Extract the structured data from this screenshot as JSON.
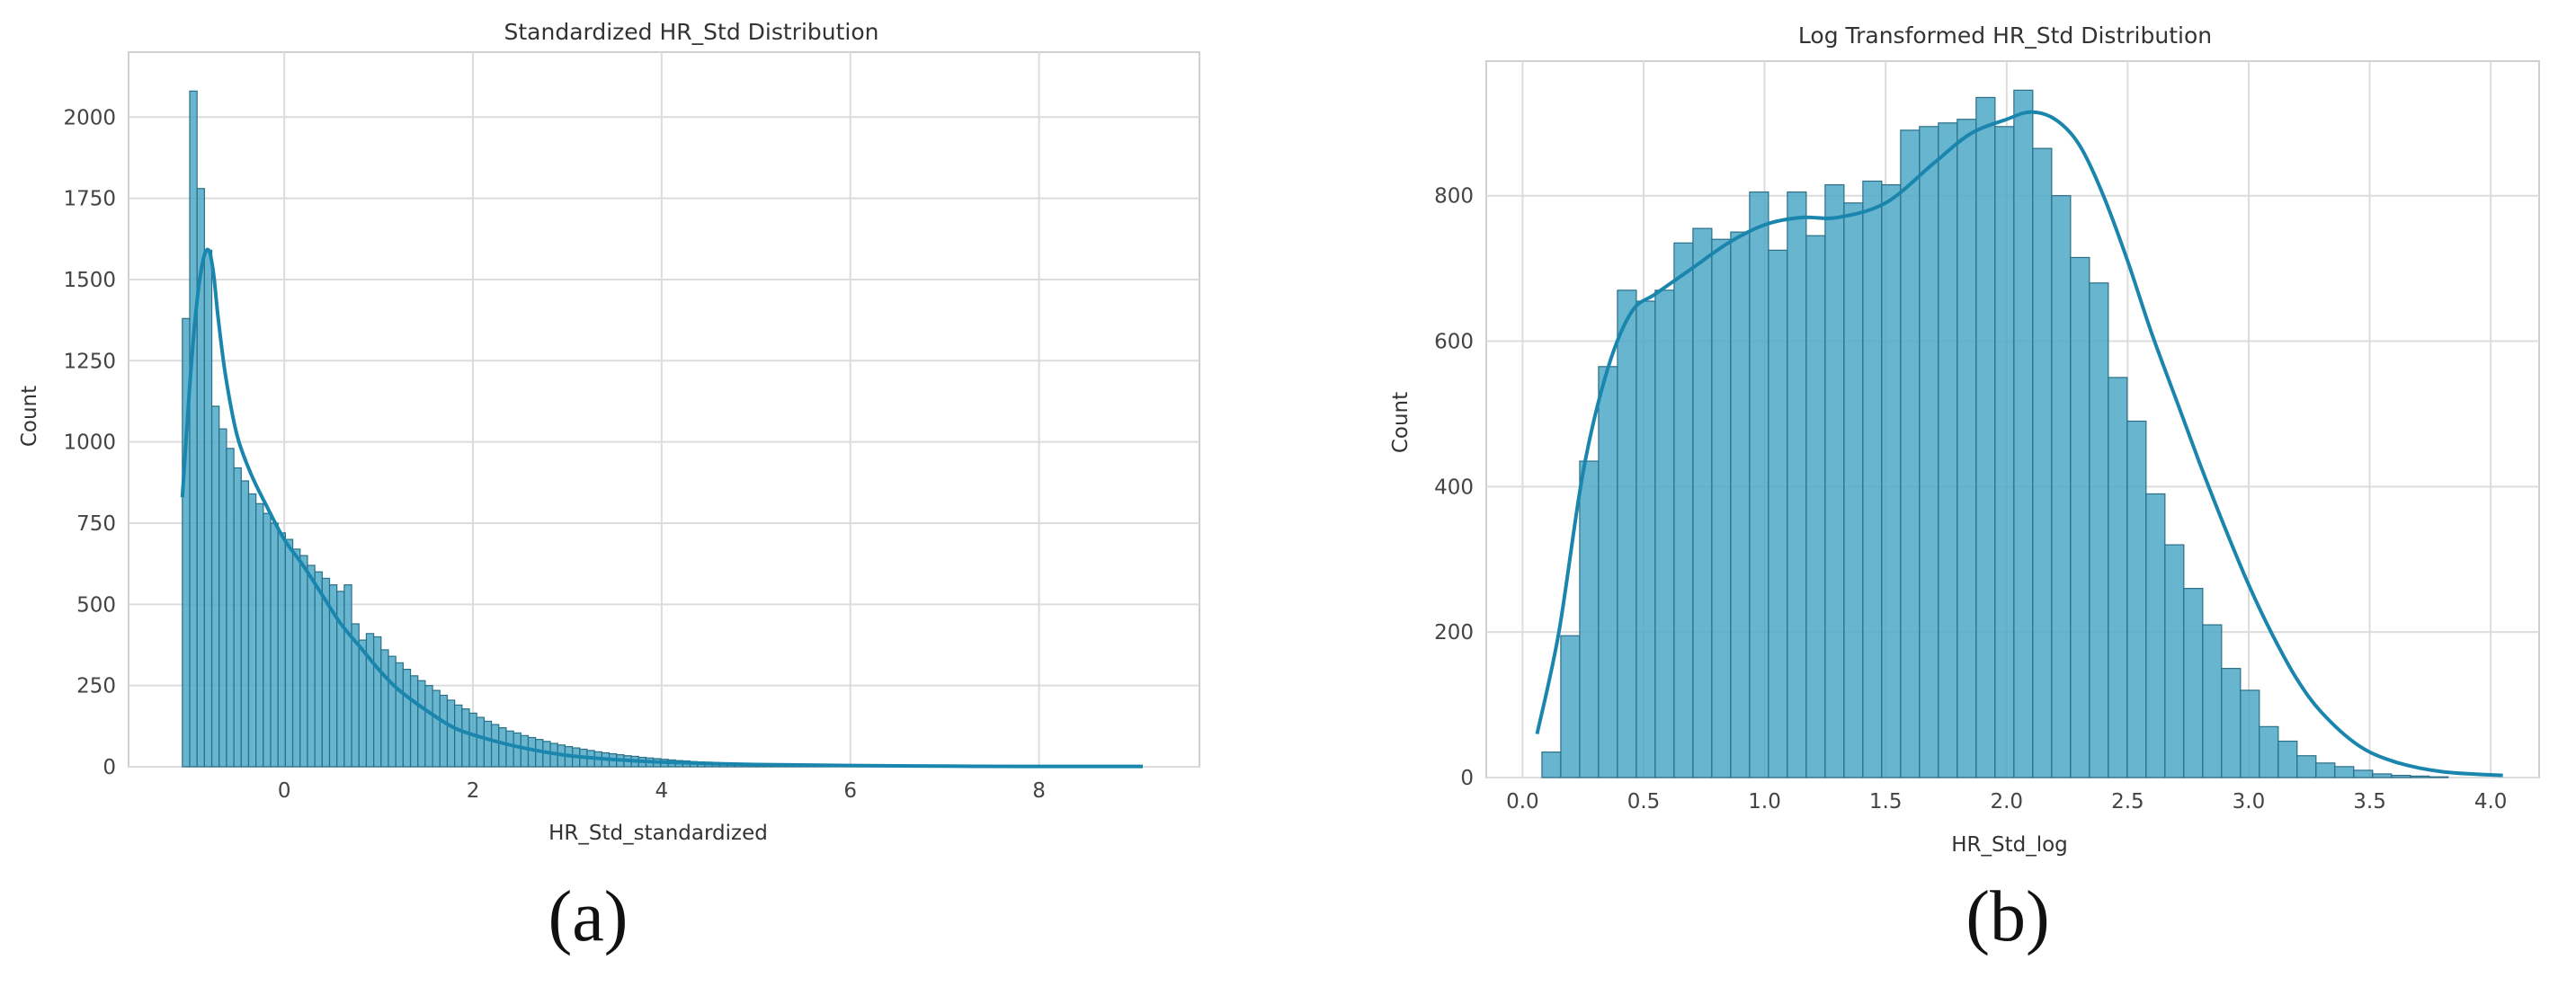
{
  "figure": {
    "captions": [
      "(a)",
      "(b)"
    ]
  },
  "chart_data": [
    {
      "type": "histogram",
      "title": "Standardized HR_Std Distribution",
      "xlabel": "HR_Std_standardized",
      "ylabel": "Count",
      "xlim": [
        -1.65,
        9.7
      ],
      "ylim": [
        0,
        2200
      ],
      "xticks": [
        0,
        2,
        4,
        6,
        8
      ],
      "yticks": [
        0,
        250,
        500,
        750,
        1000,
        1250,
        1500,
        1750,
        2000
      ],
      "grid": true,
      "color": "#4ea8c7",
      "kde_color": "#1b86ad",
      "bins": {
        "start": -1.08,
        "width": 0.078,
        "counts": [
          1380,
          2080,
          1780,
          1590,
          1110,
          1040,
          980,
          920,
          880,
          840,
          810,
          780,
          750,
          720,
          700,
          670,
          650,
          620,
          600,
          580,
          560,
          540,
          560,
          440,
          390,
          410,
          400,
          360,
          340,
          320,
          300,
          280,
          265,
          250,
          235,
          220,
          205,
          190,
          178,
          165,
          152,
          140,
          130,
          120,
          110,
          104,
          96,
          90,
          84,
          78,
          72,
          67,
          62,
          58,
          54,
          50,
          46,
          43,
          40,
          37,
          34,
          32,
          29,
          27,
          25,
          23,
          21,
          19,
          18,
          16,
          15,
          14,
          13,
          12,
          11,
          10,
          9,
          9,
          8,
          8,
          7,
          7,
          6,
          6,
          5,
          5,
          5,
          4,
          4,
          4,
          3,
          3,
          3,
          3,
          3,
          2,
          2,
          2,
          2,
          2,
          2,
          2,
          2,
          1,
          1,
          1,
          1,
          1,
          1,
          1,
          1,
          1,
          1,
          1,
          1,
          1,
          1,
          1,
          1,
          1,
          1,
          1,
          1,
          1,
          1,
          1,
          1,
          1,
          1,
          1
        ]
      },
      "kde": {
        "x": [
          -1.08,
          -1.0,
          -0.93,
          -0.86,
          -0.8,
          -0.75,
          -0.7,
          -0.62,
          -0.5,
          -0.35,
          -0.2,
          0.0,
          0.2,
          0.4,
          0.6,
          0.8,
          1.0,
          1.2,
          1.5,
          1.8,
          2.1,
          2.5,
          3.0,
          3.5,
          4.0,
          5.0,
          6.0,
          7.0,
          8.0,
          9.1
        ],
        "y": [
          830,
          1180,
          1420,
          1560,
          1590,
          1520,
          1380,
          1200,
          1020,
          900,
          810,
          700,
          620,
          530,
          440,
          370,
          300,
          240,
          175,
          120,
          90,
          60,
          35,
          22,
          14,
          7,
          4,
          2,
          1,
          1
        ]
      }
    },
    {
      "type": "histogram",
      "title": "Log Transformed HR_Std Distribution",
      "xlabel": "HR_Std_log",
      "ylabel": "Count",
      "xlim": [
        -0.15,
        4.2
      ],
      "ylim": [
        0,
        985
      ],
      "xticks": [
        0.0,
        0.5,
        1.0,
        1.5,
        2.0,
        2.5,
        3.0,
        3.5,
        4.0
      ],
      "ytick_values": [
        0,
        200,
        400,
        600,
        800
      ],
      "grid": true,
      "color": "#4ea8c7",
      "kde_color": "#1b86ad",
      "bins": {
        "start": 0.08,
        "width": 0.078,
        "counts": [
          35,
          195,
          435,
          565,
          670,
          655,
          670,
          735,
          755,
          740,
          750,
          805,
          725,
          805,
          745,
          815,
          790,
          820,
          815,
          890,
          895,
          900,
          905,
          935,
          895,
          945,
          865,
          800,
          715,
          680,
          550,
          490,
          390,
          320,
          260,
          210,
          150,
          120,
          70,
          50,
          30,
          20,
          15,
          10,
          5,
          3,
          2,
          1
        ]
      },
      "kde": {
        "x": [
          0.06,
          0.15,
          0.25,
          0.35,
          0.45,
          0.55,
          0.7,
          0.85,
          1.0,
          1.15,
          1.3,
          1.5,
          1.7,
          1.85,
          2.0,
          2.1,
          2.2,
          2.3,
          2.4,
          2.5,
          2.6,
          2.7,
          2.8,
          2.9,
          3.0,
          3.1,
          3.2,
          3.3,
          3.45,
          3.6,
          3.8,
          4.05
        ],
        "y": [
          60,
          200,
          420,
          560,
          640,
          665,
          700,
          735,
          760,
          770,
          770,
          790,
          845,
          885,
          905,
          915,
          905,
          870,
          800,
          710,
          610,
          520,
          430,
          345,
          265,
          195,
          135,
          90,
          45,
          22,
          8,
          3
        ]
      }
    }
  ]
}
